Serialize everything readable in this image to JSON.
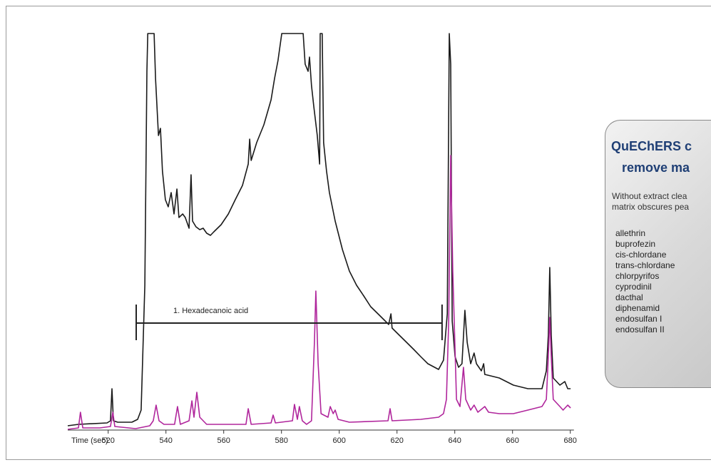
{
  "chart_data": {
    "type": "line",
    "xlabel": "Time (sec)",
    "xlim": [
      506,
      682
    ],
    "xticks": [
      520,
      540,
      560,
      580,
      600,
      620,
      640,
      660,
      680
    ],
    "ylim": [
      -10,
      553
    ],
    "annotation": {
      "text": "1. Hexadecanoic acid",
      "x": [
        529.7,
        635.6
      ],
      "y": 147
    },
    "series": [
      {
        "color": "#1a1a1a",
        "x": [
          506.0,
          509.7,
          519.6,
          520.8,
          521.3,
          521.8,
          523.3,
          528.2,
          530.2,
          531.4,
          532.7,
          533.4,
          533.7,
          535.9,
          536.4,
          537.4,
          538.1,
          538.8,
          539.8,
          540.8,
          541.8,
          542.8,
          543.8,
          544.5,
          545.8,
          546.7,
          548.0,
          548.7,
          549.2,
          550.4,
          551.7,
          552.9,
          554.1,
          555.4,
          556.6,
          559.1,
          561.6,
          564.0,
          566.5,
          568.5,
          569.0,
          569.5,
          571.4,
          573.9,
          576.4,
          577.6,
          578.8,
          580.1,
          587.5,
          588.2,
          589.2,
          589.7,
          590.4,
          591.2,
          592.4,
          593.2,
          593.4,
          594.1,
          594.6,
          595.6,
          596.6,
          598.6,
          601.1,
          603.5,
          606.0,
          608.5,
          610.9,
          613.4,
          615.9,
          617.1,
          617.9,
          618.3,
          620.8,
          623.3,
          625.8,
          628.2,
          630.7,
          634.4,
          636.1,
          637.4,
          638.1,
          638.6,
          639.1,
          640.1,
          641.3,
          642.5,
          643.5,
          644.3,
          645.5,
          646.7,
          647.5,
          649.2,
          650.0,
          650.4,
          655.4,
          660.3,
          665.3,
          670.2,
          671.7,
          672.4,
          672.9,
          673.4,
          674.1,
          676.4,
          678.1,
          679.1,
          680.1
        ],
        "values": [
          3,
          5,
          7,
          10,
          55,
          10,
          8,
          8,
          12,
          25,
          200,
          500,
          553,
          553,
          490,
          410,
          420,
          360,
          320,
          310,
          330,
          300,
          335,
          295,
          300,
          295,
          280,
          355,
          290,
          282,
          278,
          280,
          273,
          270,
          275,
          285,
          300,
          320,
          340,
          370,
          405,
          375,
          400,
          425,
          460,
          490,
          515,
          553,
          553,
          510,
          500,
          520,
          480,
          450,
          410,
          370,
          553,
          553,
          400,
          360,
          330,
          290,
          250,
          220,
          200,
          185,
          170,
          160,
          150,
          145,
          160,
          140,
          130,
          120,
          110,
          100,
          90,
          82,
          95,
          160,
          553,
          510,
          150,
          100,
          85,
          90,
          165,
          120,
          90,
          105,
          90,
          80,
          90,
          75,
          70,
          60,
          55,
          55,
          80,
          130,
          225,
          130,
          70,
          60,
          65,
          55,
          55
        ]
      },
      {
        "color": "#b0269c",
        "x": [
          506.0,
          509.7,
          510.4,
          511.2,
          517.1,
          520.8,
          521.6,
          522.3,
          529.5,
          534.4,
          535.6,
          536.6,
          537.6,
          539.3,
          543.0,
          544.0,
          545.0,
          548.0,
          549.0,
          549.7,
          550.7,
          551.7,
          554.1,
          567.7,
          568.5,
          569.5,
          576.4,
          577.1,
          577.9,
          583.8,
          584.5,
          585.5,
          586.2,
          587.2,
          588.7,
          590.4,
          591.4,
          591.9,
          592.7,
          593.7,
          596.1,
          596.9,
          597.9,
          598.6,
          599.6,
          603.5,
          616.9,
          617.6,
          618.3,
          628.2,
          634.4,
          636.1,
          637.1,
          637.9,
          638.6,
          639.3,
          640.6,
          641.8,
          643.0,
          643.8,
          645.5,
          646.7,
          648.0,
          650.4,
          651.7,
          655.4,
          660.3,
          665.3,
          670.2,
          671.7,
          672.4,
          672.9,
          673.4,
          674.1,
          676.4,
          677.5,
          679.1,
          680.1
        ],
        "values": [
          -2,
          0,
          22,
          0,
          0,
          2,
          22,
          2,
          -1,
          3,
          10,
          32,
          10,
          5,
          5,
          30,
          5,
          10,
          38,
          15,
          50,
          15,
          5,
          5,
          27,
          5,
          7,
          18,
          7,
          10,
          33,
          12,
          30,
          10,
          5,
          10,
          120,
          192,
          90,
          20,
          15,
          30,
          20,
          25,
          12,
          8,
          10,
          27,
          10,
          12,
          15,
          20,
          40,
          150,
          382,
          220,
          40,
          30,
          85,
          40,
          25,
          32,
          22,
          30,
          22,
          20,
          20,
          25,
          30,
          40,
          100,
          155,
          100,
          40,
          30,
          25,
          32,
          28
        ]
      }
    ]
  },
  "panel": {
    "title": [
      "QuEChERS c",
      "remove ma"
    ],
    "subtitle": [
      "Without extract clea",
      "matrix obscures pea"
    ],
    "items": [
      "allethrin",
      "buprofezin",
      "cis-chlordane",
      "trans-chlordane",
      "chlorpyrifos",
      "cyprodinil",
      "dacthal",
      "diphenamid",
      "endosulfan I",
      "endosulfan II"
    ]
  }
}
